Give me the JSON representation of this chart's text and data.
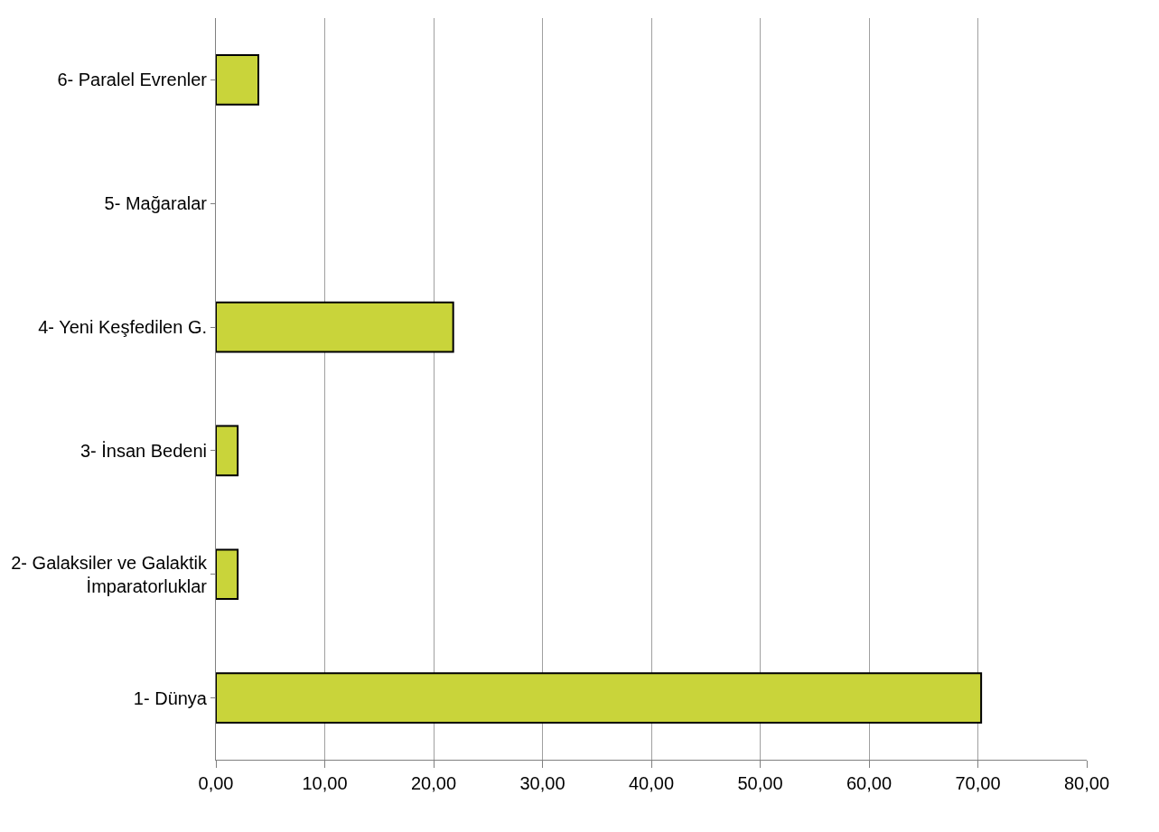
{
  "chart_data": {
    "type": "bar",
    "orientation": "horizontal",
    "categories": [
      "6- Paralel Evrenler",
      "5- Mağaralar",
      "4- Yeni Keşfedilen G.",
      "3- İnsan Bedeni",
      "2- Galaksiler ve Galaktik\nİmparatorluklar",
      "1- Dünya"
    ],
    "values": [
      3.9,
      0,
      21.8,
      2,
      2,
      70.3
    ],
    "color": "#c9d43a",
    "xlim": [
      0,
      80
    ],
    "xticks": [
      {
        "value": 0,
        "label": "0,00"
      },
      {
        "value": 10,
        "label": "10,00"
      },
      {
        "value": 20,
        "label": "20,00"
      },
      {
        "value": 30,
        "label": "30,00"
      },
      {
        "value": 40,
        "label": "40,00"
      },
      {
        "value": 50,
        "label": "50,00"
      },
      {
        "value": 60,
        "label": "60,00"
      },
      {
        "value": 70,
        "label": "70,00"
      },
      {
        "value": 80,
        "label": "80,00"
      }
    ],
    "grid": "x"
  }
}
